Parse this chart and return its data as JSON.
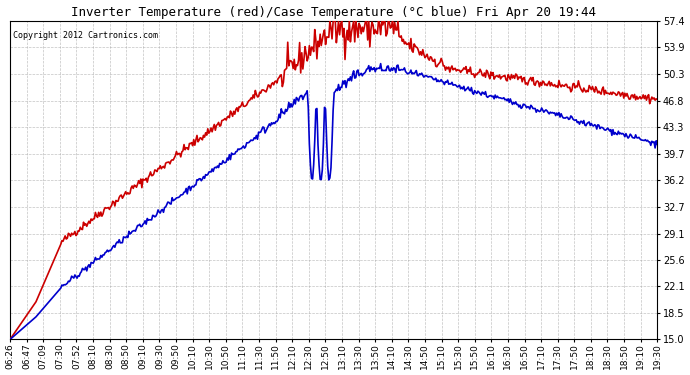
{
  "title": "Inverter Temperature (red)/Case Temperature (°C blue) Fri Apr 20 19:44",
  "copyright": "Copyright 2012 Cartronics.com",
  "background_color": "#ffffff",
  "plot_bg_color": "#ffffff",
  "grid_color": "#aaaaaa",
  "ymin": 15.0,
  "ymax": 57.4,
  "yticks": [
    15.0,
    18.5,
    22.1,
    25.6,
    29.1,
    32.7,
    36.2,
    39.7,
    43.3,
    46.8,
    50.3,
    53.9,
    57.4
  ],
  "x_labels": [
    "06:26",
    "06:47",
    "07:09",
    "07:30",
    "07:52",
    "08:10",
    "08:30",
    "08:50",
    "09:10",
    "09:30",
    "09:50",
    "10:10",
    "10:30",
    "10:50",
    "11:10",
    "11:30",
    "11:50",
    "12:10",
    "12:30",
    "12:50",
    "13:10",
    "13:30",
    "13:50",
    "14:10",
    "14:30",
    "14:50",
    "15:10",
    "15:30",
    "15:50",
    "16:10",
    "16:30",
    "16:50",
    "17:10",
    "17:30",
    "17:50",
    "18:10",
    "18:30",
    "18:50",
    "19:10",
    "19:30"
  ],
  "red_line_color": "#cc0000",
  "blue_line_color": "#0000cc",
  "line_width": 1.2
}
